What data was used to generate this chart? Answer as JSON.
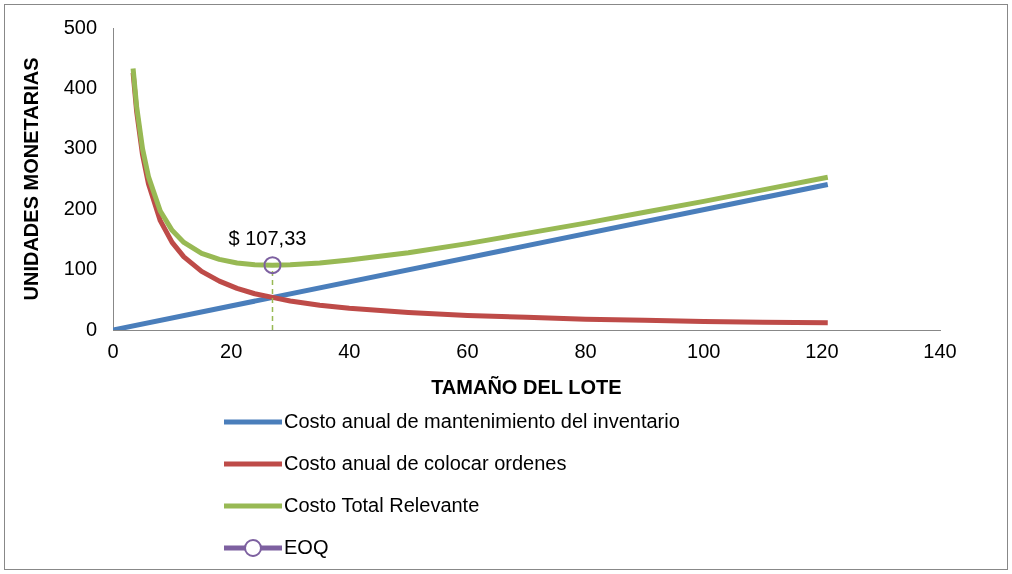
{
  "chart_data": {
    "type": "line",
    "xlabel": "TAMAÑO DEL LOTE",
    "ylabel": "UNIDADES MONETARIAS",
    "xlim": [
      0,
      140
    ],
    "xticks": [
      0,
      20,
      40,
      60,
      80,
      100,
      120,
      140
    ],
    "ylim": [
      0,
      500
    ],
    "yticks": [
      0,
      100,
      200,
      300,
      400,
      500
    ],
    "grid": false,
    "legend": "bottom",
    "marker": "none",
    "line_style": "solid",
    "series": [
      {
        "name": "Costo anual de mantenimiento del inventario",
        "color": "#4a7ebb",
        "x": [
          0,
          121
        ],
        "values": [
          0,
          241
        ]
      },
      {
        "name": "Costo anual de colocar ordenes",
        "color": "#be4b48",
        "x": [
          3.4,
          4,
          5,
          6,
          8,
          10,
          12,
          15,
          18,
          21,
          24,
          27,
          30,
          35,
          40,
          50,
          60,
          70,
          80,
          90,
          100,
          110,
          121
        ],
        "values": [
          426,
          362,
          290,
          242,
          181,
          145,
          121,
          97,
          81,
          69,
          60,
          54,
          48,
          41,
          36,
          29,
          24,
          21,
          18,
          16,
          14,
          13,
          12
        ]
      },
      {
        "name": "Costo Total Relevante",
        "color": "#98b954",
        "x": [
          3.4,
          4,
          5,
          6,
          8,
          10,
          12,
          15,
          18,
          21,
          24,
          27,
          30,
          35,
          40,
          50,
          60,
          70,
          80,
          90,
          100,
          110,
          121
        ],
        "values": [
          433,
          370,
          300,
          254,
          197,
          165,
          145,
          127,
          117,
          111,
          108,
          107,
          108,
          111,
          116,
          128,
          143,
          160,
          177,
          195,
          213,
          232,
          253
        ]
      },
      {
        "name": "EOQ",
        "type": "scatter",
        "marker": "circle",
        "color": "#7d60a0",
        "x": [
          27
        ],
        "values": [
          107.33
        ],
        "errors": [
          [
            0,
            107.33
          ]
        ],
        "value_labels": [
          "$ 107,33"
        ]
      }
    ]
  }
}
